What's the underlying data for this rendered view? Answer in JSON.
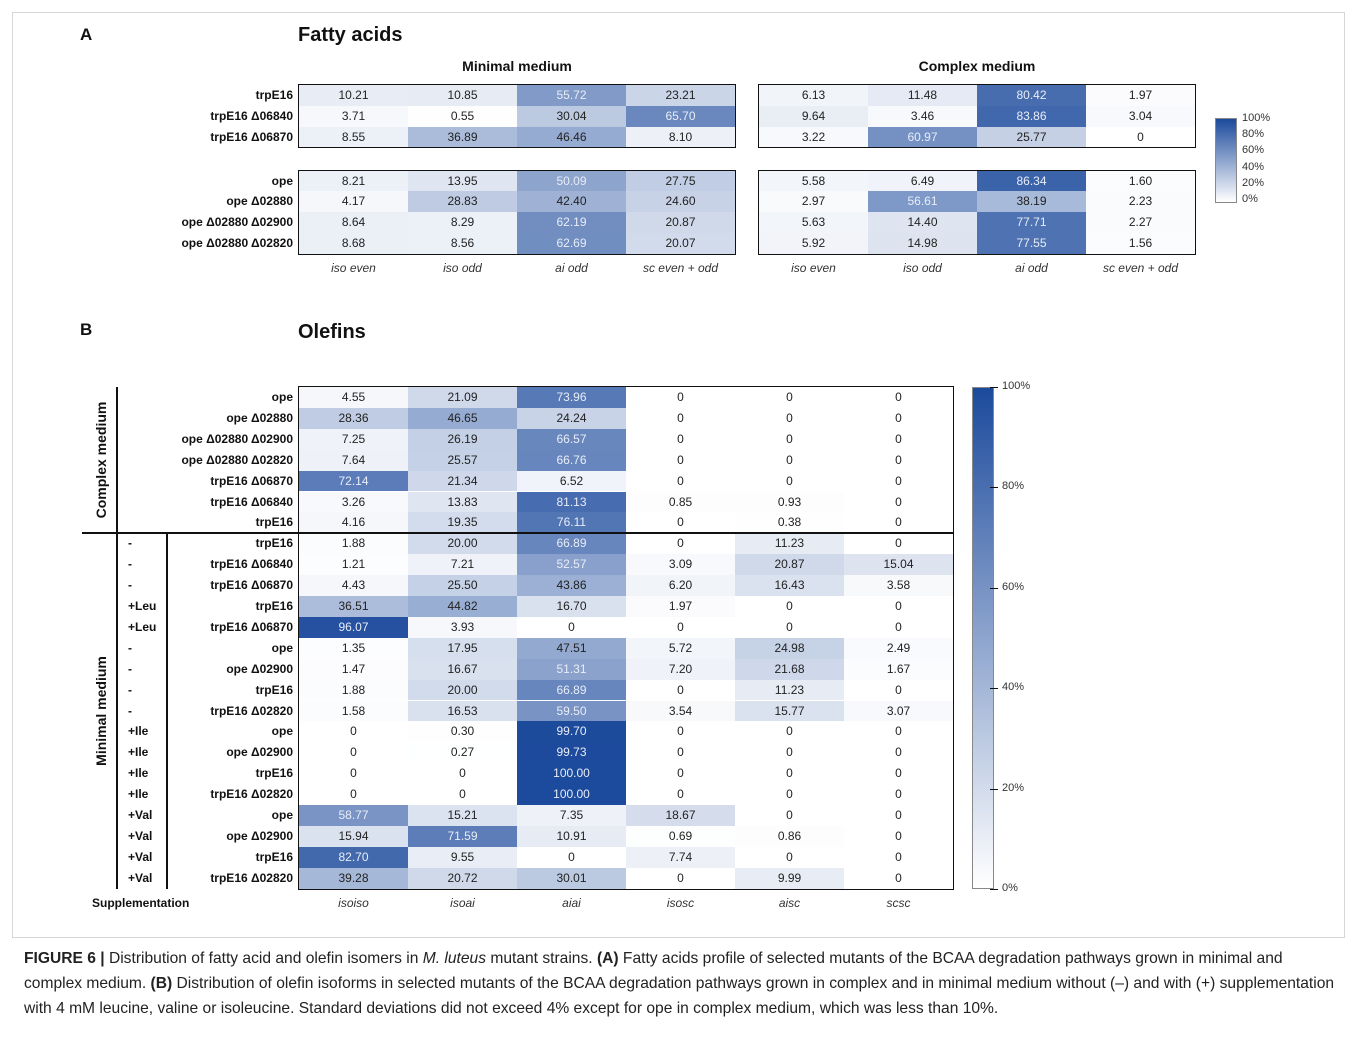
{
  "panel_a": {
    "letter": "A",
    "title": "Fatty acids"
  },
  "panel_b": {
    "letter": "B",
    "title": "Olefins"
  },
  "chart_data": [
    {
      "type": "heatmap",
      "title": "Fatty acids",
      "groups": [
        {
          "name": "Minimal medium",
          "columns": [
            "iso even",
            "iso odd",
            "ai odd",
            "sc even + odd"
          ]
        },
        {
          "name": "Complex medium",
          "columns": [
            "iso even",
            "iso odd",
            "ai odd",
            "sc even + odd"
          ]
        }
      ],
      "blocks": [
        {
          "rows": [
            "trpE16",
            "trpE16 Δ06840",
            "trpE16 Δ06870"
          ],
          "minimal": [
            [
              10.21,
              10.85,
              55.72,
              23.21
            ],
            [
              3.71,
              0.55,
              30.04,
              65.7
            ],
            [
              8.55,
              36.89,
              46.46,
              8.1
            ]
          ],
          "complex": [
            [
              6.13,
              11.48,
              80.42,
              1.97
            ],
            [
              9.64,
              3.46,
              83.86,
              3.04
            ],
            [
              3.22,
              60.97,
              25.77,
              0
            ]
          ]
        },
        {
          "rows": [
            "ope",
            "ope Δ02880",
            "ope Δ02880 Δ02900",
            "ope Δ02880 Δ02820"
          ],
          "minimal": [
            [
              8.21,
              13.95,
              50.09,
              27.75
            ],
            [
              4.17,
              28.83,
              42.4,
              24.6
            ],
            [
              8.64,
              8.29,
              62.19,
              20.87
            ],
            [
              8.68,
              8.56,
              62.69,
              20.07
            ]
          ],
          "complex": [
            [
              5.58,
              6.49,
              86.34,
              1.6
            ],
            [
              2.97,
              56.61,
              38.19,
              2.23
            ],
            [
              5.63,
              14.4,
              77.71,
              2.27
            ],
            [
              5.92,
              14.98,
              77.55,
              1.56
            ]
          ]
        }
      ],
      "colorbar": {
        "ticks": [
          "100%",
          "80%",
          "60%",
          "40%",
          "20%",
          "0%"
        ],
        "min_color": "#ffffff",
        "max_color": "#1c4a9c"
      }
    },
    {
      "type": "heatmap",
      "title": "Olefins",
      "columns": [
        "isoiso",
        "isoai",
        "aiai",
        "isosc",
        "aisc",
        "scsc"
      ],
      "row_header": "Supplementation",
      "sections": [
        {
          "name": "Complex medium",
          "rows": [
            {
              "supp": "",
              "strain": "ope",
              "values": [
                4.55,
                21.09,
                73.96,
                0,
                0,
                0
              ]
            },
            {
              "supp": "",
              "strain": "ope Δ02880",
              "values": [
                28.36,
                46.65,
                24.24,
                0,
                0,
                0
              ]
            },
            {
              "supp": "",
              "strain": "ope Δ02880 Δ02900",
              "values": [
                7.25,
                26.19,
                66.57,
                0,
                0,
                0
              ]
            },
            {
              "supp": "",
              "strain": "ope Δ02880 Δ02820",
              "values": [
                7.64,
                25.57,
                66.76,
                0,
                0,
                0
              ]
            },
            {
              "supp": "",
              "strain": "trpE16 Δ06870",
              "values": [
                72.14,
                21.34,
                6.52,
                0,
                0,
                0
              ]
            },
            {
              "supp": "",
              "strain": "trpE16 Δ06840",
              "values": [
                3.26,
                13.83,
                81.13,
                0.85,
                0.93,
                0
              ]
            },
            {
              "supp": "",
              "strain": "trpE16",
              "values": [
                4.16,
                19.35,
                76.11,
                0,
                0.38,
                0
              ]
            }
          ]
        },
        {
          "name": "Minimal medium",
          "rows": [
            {
              "supp": "-",
              "strain": "trpE16",
              "values": [
                1.88,
                20.0,
                66.89,
                0,
                11.23,
                0
              ]
            },
            {
              "supp": "-",
              "strain": "trpE16 Δ06840",
              "values": [
                1.21,
                7.21,
                52.57,
                3.09,
                20.87,
                15.04
              ]
            },
            {
              "supp": "-",
              "strain": "trpE16 Δ06870",
              "values": [
                4.43,
                25.5,
                43.86,
                6.2,
                16.43,
                3.58
              ]
            },
            {
              "supp": "+Leu",
              "strain": "trpE16",
              "values": [
                36.51,
                44.82,
                16.7,
                1.97,
                0,
                0
              ]
            },
            {
              "supp": "+Leu",
              "strain": "trpE16 Δ06870",
              "values": [
                96.07,
                3.93,
                0,
                0,
                0,
                0
              ]
            },
            {
              "supp": "-",
              "strain": "ope",
              "values": [
                1.35,
                17.95,
                47.51,
                5.72,
                24.98,
                2.49
              ]
            },
            {
              "supp": "-",
              "strain": "ope Δ02900",
              "values": [
                1.47,
                16.67,
                51.31,
                7.2,
                21.68,
                1.67
              ]
            },
            {
              "supp": "-",
              "strain": "trpE16",
              "values": [
                1.88,
                20.0,
                66.89,
                0,
                11.23,
                0
              ]
            },
            {
              "supp": "-",
              "strain": "trpE16 Δ02820",
              "values": [
                1.58,
                16.53,
                59.5,
                3.54,
                15.77,
                3.07
              ]
            },
            {
              "supp": "+Ile",
              "strain": "ope",
              "values": [
                0,
                0.3,
                99.7,
                0,
                0,
                0
              ]
            },
            {
              "supp": "+Ile",
              "strain": "ope Δ02900",
              "values": [
                0,
                0.27,
                99.73,
                0,
                0,
                0
              ]
            },
            {
              "supp": "+Ile",
              "strain": "trpE16",
              "values": [
                0,
                0,
                100.0,
                0,
                0,
                0
              ]
            },
            {
              "supp": "+Ile",
              "strain": "trpE16 Δ02820",
              "values": [
                0,
                0,
                100.0,
                0,
                0,
                0
              ]
            },
            {
              "supp": "+Val",
              "strain": "ope",
              "values": [
                58.77,
                15.21,
                7.35,
                18.67,
                0,
                0
              ]
            },
            {
              "supp": "+Val",
              "strain": "ope Δ02900",
              "values": [
                15.94,
                71.59,
                10.91,
                0.69,
                0.86,
                0
              ]
            },
            {
              "supp": "+Val",
              "strain": "trpE16",
              "values": [
                82.7,
                9.55,
                0,
                7.74,
                0,
                0
              ]
            },
            {
              "supp": "+Val",
              "strain": "trpE16 Δ02820",
              "values": [
                39.28,
                20.72,
                30.01,
                0,
                9.99,
                0
              ]
            }
          ]
        }
      ],
      "colorbar": {
        "ticks": [
          "100%",
          "80%",
          "60%",
          "40%",
          "20%",
          "0%"
        ],
        "min_color": "#ffffff",
        "max_color": "#1c4a9c"
      }
    }
  ],
  "caption": {
    "figure_label": "FIGURE 6 |",
    "intro": " Distribution of fatty acid and olefin isomers in ",
    "species": "M. luteus",
    "intro_end": " mutant strains. ",
    "a_label": "(A)",
    "a_text": " Fatty acids profile of selected mutants of the BCAA degradation pathways grown in minimal and complex medium. ",
    "b_label": "(B)",
    "b_text": " Distribution of olefin isoforms in selected mutants of the BCAA degradation pathways grown in complex and in minimal medium without (–) and with (+) supplementation with 4 mM leucine, valine or isoleucine. Standard deviations did not exceed 4% except for ope in complex medium, which was less than 10%."
  }
}
